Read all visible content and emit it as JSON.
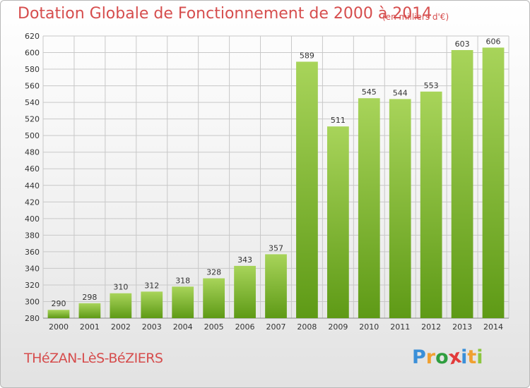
{
  "header": {
    "title": "Dotation Globale de Fonctionnement de 2000 à 2014",
    "unit": "(en milliers d'€)"
  },
  "footer": {
    "commune": "THéZAN-LèS-BéZIERS",
    "logo": {
      "letters": [
        "P",
        "r",
        "o",
        "x",
        "i",
        "t",
        "i"
      ],
      "colors": [
        "#3a8fd8",
        "#f0a030",
        "#2f9e3f",
        "#e23a3a",
        "#3a8fd8",
        "#f0a030",
        "#8cc63f"
      ]
    }
  },
  "colors": {
    "bar_top": "#a8d45a",
    "bar_bottom": "#5e9a16",
    "grid": "#c8c8c8",
    "axis_text": "#333333",
    "title": "#d64d4d"
  },
  "chart_data": {
    "type": "bar",
    "categories": [
      "2000",
      "2001",
      "2002",
      "2003",
      "2004",
      "2005",
      "2006",
      "2007",
      "2008",
      "2009",
      "2010",
      "2011",
      "2012",
      "2013",
      "2014"
    ],
    "values": [
      290,
      298,
      310,
      312,
      318,
      328,
      343,
      357,
      589,
      511,
      545,
      544,
      553,
      603,
      606
    ],
    "data_labels": [
      "290",
      "298",
      "310",
      "312",
      "318",
      "328",
      "343",
      "357",
      "589",
      "511",
      "545",
      "544",
      "553",
      "603",
      "606"
    ],
    "yticks": [
      "280",
      "300",
      "320",
      "340",
      "360",
      "380",
      "400",
      "420",
      "440",
      "460",
      "480",
      "500",
      "520",
      "540",
      "560",
      "580",
      "600",
      "620"
    ],
    "ylim": [
      280,
      620
    ],
    "grid": true,
    "legend": "none"
  }
}
